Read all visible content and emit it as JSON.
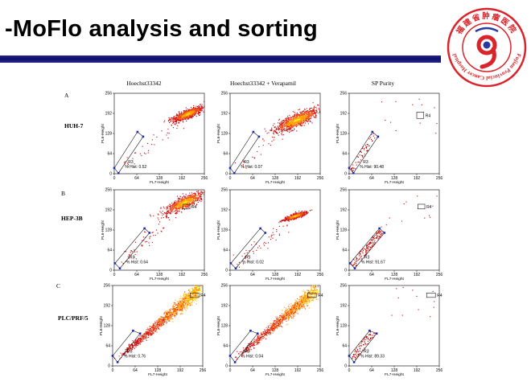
{
  "slide": {
    "title": "-MoFlo analysis and sorting"
  },
  "logo": {
    "text": "福建省肿瘤医院",
    "english": "Fujian Provincial Cancer Hospital",
    "colors": {
      "primary": "#d8242a",
      "accent": "#2b3aa0"
    }
  },
  "figure": {
    "columns": [
      "Hoechst33342",
      "Hoechst33342 + Verapamil",
      "SP  Purity"
    ],
    "rows": [
      {
        "letter": "A",
        "name": "HUH-7"
      },
      {
        "letter": "B",
        "name": "HEP-3B"
      },
      {
        "letter": "C",
        "name": "PLC/PRF/5"
      }
    ],
    "axes": {
      "xlabel": "FL7-Height",
      "ylabel": "FL6-Height",
      "ticks": [
        "0",
        "64",
        "128",
        "192",
        "256"
      ],
      "range": [
        0,
        256
      ]
    },
    "gate_label": "R3",
    "pct_prefix": "% Hist:",
    "region_label": "R4",
    "panels": [
      {
        "id": "A1",
        "pct": "0.52",
        "type": "cloud",
        "show_r4": false,
        "gate": [
          [
            0,
            18
          ],
          [
            66,
            133
          ],
          [
            82,
            118
          ],
          [
            12,
            2
          ]
        ],
        "r4": [
          192,
          176,
          212,
          196
        ],
        "cloud": {
          "cx": 210,
          "cy": 190,
          "sx": 22,
          "sy": 14,
          "n": 900,
          "tail": 40
        }
      },
      {
        "id": "A2",
        "pct": "0.07",
        "type": "cloud",
        "show_r4": false,
        "gate": [
          [
            0,
            18
          ],
          [
            66,
            133
          ],
          [
            82,
            118
          ],
          [
            12,
            2
          ]
        ],
        "r4": [
          192,
          176,
          212,
          196
        ],
        "cloud": {
          "cx": 190,
          "cy": 170,
          "sx": 32,
          "sy": 22,
          "n": 1000,
          "tail": 30
        }
      },
      {
        "id": "A3",
        "pct": "90.48",
        "type": "purity",
        "show_r4": true,
        "gate": [
          [
            0,
            18
          ],
          [
            66,
            133
          ],
          [
            82,
            118
          ],
          [
            12,
            2
          ]
        ],
        "r4": [
          192,
          176,
          212,
          196
        ],
        "cloud": {
          "n": 60
        }
      },
      {
        "id": "B1",
        "pct": "0.64",
        "type": "cloud",
        "show_r4": true,
        "gate": [
          [
            2,
            22
          ],
          [
            86,
            133
          ],
          [
            100,
            119
          ],
          [
            16,
            6
          ]
        ],
        "r4": [
          195,
          195,
          215,
          210
        ],
        "cloud": {
          "cx": 200,
          "cy": 215,
          "sx": 28,
          "sy": 20,
          "n": 800,
          "tail": 60
        }
      },
      {
        "id": "B2",
        "pct": "0.02",
        "type": "cloud",
        "show_r4": false,
        "gate": [
          [
            2,
            22
          ],
          [
            86,
            133
          ],
          [
            100,
            119
          ],
          [
            16,
            6
          ]
        ],
        "r4": [
          195,
          195,
          215,
          210
        ],
        "cloud": {
          "cx": 185,
          "cy": 172,
          "sx": 16,
          "sy": 8,
          "n": 600,
          "tail": 50
        }
      },
      {
        "id": "B3",
        "pct": "91.67",
        "type": "purity",
        "show_r4": true,
        "gate": [
          [
            2,
            22
          ],
          [
            86,
            133
          ],
          [
            100,
            119
          ],
          [
            16,
            6
          ]
        ],
        "r4": [
          195,
          195,
          215,
          210
        ],
        "cloud": {
          "n": 160
        }
      },
      {
        "id": "C1",
        "pct": "0.76",
        "type": "diag",
        "show_r4": true,
        "gate": [
          [
            0,
            32
          ],
          [
            58,
            112
          ],
          [
            78,
            103
          ],
          [
            14,
            12
          ]
        ],
        "r4": [
          220,
          218,
          245,
          232
        ],
        "cloud": {
          "n": 1300
        }
      },
      {
        "id": "C2",
        "pct": "0.04",
        "type": "diag",
        "show_r4": true,
        "gate": [
          [
            0,
            32
          ],
          [
            58,
            112
          ],
          [
            78,
            103
          ],
          [
            14,
            12
          ]
        ],
        "r4": [
          220,
          218,
          245,
          232
        ],
        "cloud": {
          "n": 1100
        }
      },
      {
        "id": "C3",
        "pct": "89.33",
        "type": "purity",
        "show_r4": true,
        "gate": [
          [
            0,
            32
          ],
          [
            58,
            112
          ],
          [
            78,
            103
          ],
          [
            14,
            12
          ]
        ],
        "r4": [
          220,
          218,
          245,
          232
        ],
        "cloud": {
          "n": 90
        }
      }
    ]
  }
}
